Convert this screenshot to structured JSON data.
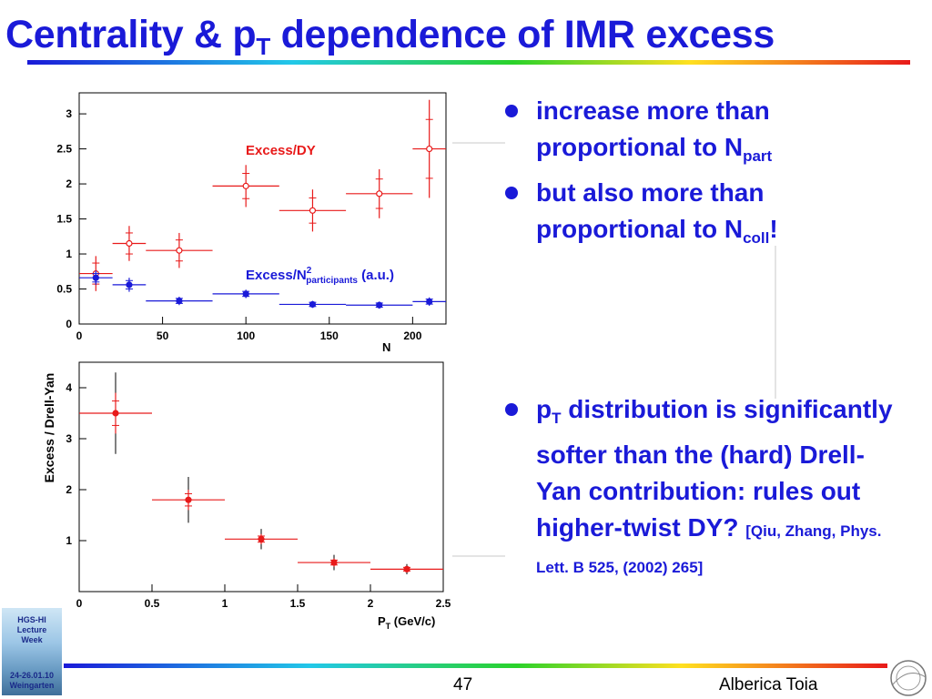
{
  "title": {
    "before": "Centrality & p",
    "sub": "T",
    "after": " dependence of IMR excess"
  },
  "bullets": [
    {
      "before": "increase more than proportional to N",
      "sub": "part",
      "after": ""
    },
    {
      "before": "but also more than proportional to N",
      "sub": "coll",
      "after": "!"
    }
  ],
  "bullet2": {
    "before": "p",
    "sub": "T",
    "after": " distribution is significantly softer than the (hard) Drell-Yan contribution: rules out higher-twist DY? ",
    "citation": "[Qiu, Zhang, Phys. Lett. B 525, (2002) 265]"
  },
  "footer": {
    "slide_number": "47",
    "author": "Alberica Toia"
  },
  "logo": {
    "line1": "HGS-HI",
    "line2": "Lecture",
    "line3": "Week",
    "line4": "24-26.01.10",
    "line5": "Weingarten"
  },
  "colors": {
    "title": "#1a1ad8",
    "red_series": "#e81a1a",
    "blue_series": "#1a1ad8"
  },
  "chart_data": [
    {
      "type": "scatter",
      "title": "",
      "xlabel": "N",
      "ylabel": "",
      "xlim": [
        0,
        220
      ],
      "ylim": [
        0,
        3.3
      ],
      "xticks": [
        "0",
        "50",
        "100",
        "150",
        "200"
      ],
      "yticks": [
        "0",
        "0.5",
        "1",
        "1.5",
        "2",
        "2.5",
        "3"
      ],
      "series": [
        {
          "name": "Excess/DY",
          "color": "#e81a1a",
          "marker": "open",
          "x": [
            10,
            30,
            60,
            100,
            140,
            180,
            210
          ],
          "xerr": [
            10,
            10,
            20,
            20,
            20,
            20,
            10
          ],
          "y": [
            0.72,
            1.15,
            1.05,
            1.97,
            1.62,
            1.86,
            2.5
          ],
          "yerr": [
            0.25,
            0.25,
            0.25,
            0.3,
            0.3,
            0.35,
            0.7
          ]
        },
        {
          "name": "Excess/N",
          "name_sup": "2",
          "name_sub": "participants",
          "name_suffix": " (a.u.)",
          "color": "#1a1ad8",
          "marker": "filled",
          "x": [
            10,
            30,
            60,
            100,
            140,
            180,
            210
          ],
          "xerr": [
            10,
            10,
            20,
            20,
            20,
            20,
            10
          ],
          "y": [
            0.66,
            0.56,
            0.33,
            0.43,
            0.28,
            0.27,
            0.32
          ],
          "yerr": [
            0.1,
            0.1,
            0.06,
            0.06,
            0.05,
            0.05,
            0.06
          ]
        }
      ]
    },
    {
      "type": "scatter",
      "title": "",
      "xlabel": "P",
      "xlabel_sub": "T",
      "xlabel_suffix": " (GeV/c)",
      "ylabel": "Excess / Drell-Yan",
      "xlim": [
        0,
        2.5
      ],
      "ylim": [
        0,
        4.5
      ],
      "xticks": [
        "0",
        "0.5",
        "1",
        "1.5",
        "2",
        "2.5"
      ],
      "yticks": [
        "1",
        "2",
        "3",
        "4"
      ],
      "series": [
        {
          "name": "",
          "color": "#e81a1a",
          "marker": "filled",
          "x": [
            0.25,
            0.75,
            1.25,
            1.75,
            2.25
          ],
          "xerr": [
            0.25,
            0.25,
            0.25,
            0.25,
            0.25
          ],
          "y": [
            3.5,
            1.8,
            1.03,
            0.57,
            0.44
          ],
          "yerr": [
            0.4,
            0.2,
            0.1,
            0.08,
            0.06
          ],
          "syserr": [
            0.8,
            0.45,
            0.2,
            0.15,
            0.1
          ]
        }
      ]
    }
  ]
}
